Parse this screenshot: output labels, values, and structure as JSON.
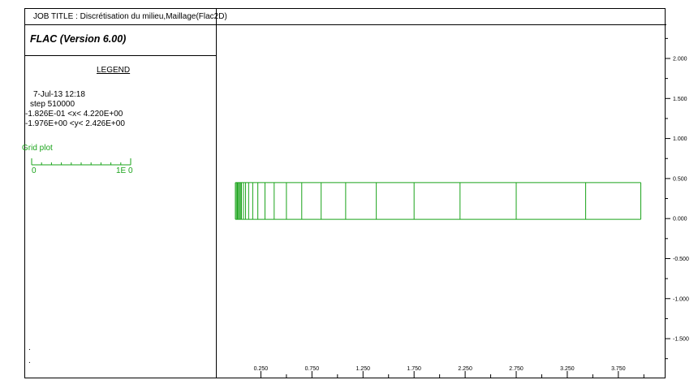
{
  "header": {
    "job_title": "JOB TITLE : Discrétisation du milieu,Maillage(Flac2D)"
  },
  "panel": {
    "version": "FLAC (Version 6.00)",
    "legend_title": "LEGEND",
    "date": "7-Jul-13  12:18",
    "step": "step   510000",
    "x_range": "-1.826E-01 <x<  4.220E+00",
    "y_range": "-1.976E+00 <y<  2.426E+00",
    "grid_plot_label": "Grid plot",
    "scale_start": "0",
    "scale_end": "1E  0",
    "dot1": ".",
    "dot2": "."
  },
  "colors": {
    "grid": "#1aa31a",
    "axis": "#000000"
  },
  "chart_data": {
    "type": "grid",
    "x_ticks": [
      "0.250",
      "0.750",
      "1.250",
      "1.750",
      "2.250",
      "2.750",
      "3.250",
      "3.750"
    ],
    "y_ticks": [
      "2.000",
      "1.500",
      "1.000",
      "0.500",
      "0.000",
      "-0.500",
      "-1.000",
      "-1.500"
    ],
    "xlim": [
      -0.1826,
      4.22
    ],
    "ylim": [
      -1.976,
      2.426
    ],
    "grid_y_range": [
      0.0,
      0.46
    ],
    "grid_x_lines": [
      0.0,
      0.01,
      0.02,
      0.03,
      0.04,
      0.05,
      0.06,
      0.08,
      0.1,
      0.13,
      0.17,
      0.22,
      0.29,
      0.38,
      0.5,
      0.65,
      0.84,
      1.08,
      1.38,
      1.75,
      2.2,
      2.75,
      3.43,
      3.97
    ]
  }
}
